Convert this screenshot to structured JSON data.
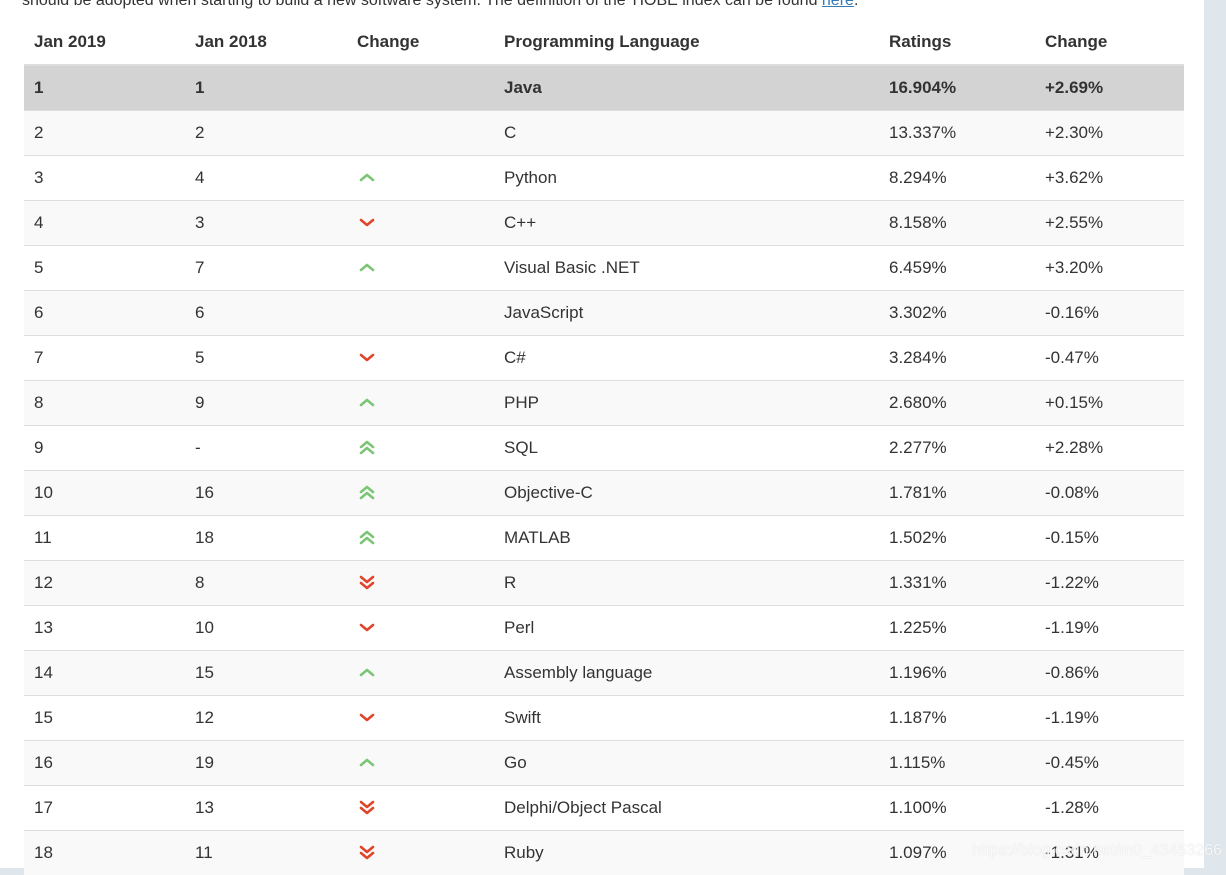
{
  "intro": {
    "text": "should be adopted when starting to build a new software system. The definition of the TIOBE index can be found ",
    "link": "here",
    "suffix": "."
  },
  "headers": [
    "Jan 2019",
    "Jan 2018",
    "Change",
    "Programming Language",
    "Ratings",
    "Change"
  ],
  "rows": [
    {
      "rank2019": "1",
      "rank2018": "1",
      "change": "none",
      "language": "Java",
      "rating": "16.904%",
      "delta": "+2.69%"
    },
    {
      "rank2019": "2",
      "rank2018": "2",
      "change": "none",
      "language": "C",
      "rating": "13.337%",
      "delta": "+2.30%"
    },
    {
      "rank2019": "3",
      "rank2018": "4",
      "change": "up",
      "language": "Python",
      "rating": "8.294%",
      "delta": "+3.62%"
    },
    {
      "rank2019": "4",
      "rank2018": "3",
      "change": "down",
      "language": "C++",
      "rating": "8.158%",
      "delta": "+2.55%"
    },
    {
      "rank2019": "5",
      "rank2018": "7",
      "change": "up",
      "language": "Visual Basic .NET",
      "rating": "6.459%",
      "delta": "+3.20%"
    },
    {
      "rank2019": "6",
      "rank2018": "6",
      "change": "none",
      "language": "JavaScript",
      "rating": "3.302%",
      "delta": "-0.16%"
    },
    {
      "rank2019": "7",
      "rank2018": "5",
      "change": "down",
      "language": "C#",
      "rating": "3.284%",
      "delta": "-0.47%"
    },
    {
      "rank2019": "8",
      "rank2018": "9",
      "change": "up",
      "language": "PHP",
      "rating": "2.680%",
      "delta": "+0.15%"
    },
    {
      "rank2019": "9",
      "rank2018": "-",
      "change": "up2",
      "language": "SQL",
      "rating": "2.277%",
      "delta": "+2.28%"
    },
    {
      "rank2019": "10",
      "rank2018": "16",
      "change": "up2",
      "language": "Objective-C",
      "rating": "1.781%",
      "delta": "-0.08%"
    },
    {
      "rank2019": "11",
      "rank2018": "18",
      "change": "up2",
      "language": "MATLAB",
      "rating": "1.502%",
      "delta": "-0.15%"
    },
    {
      "rank2019": "12",
      "rank2018": "8",
      "change": "down2",
      "language": "R",
      "rating": "1.331%",
      "delta": "-1.22%"
    },
    {
      "rank2019": "13",
      "rank2018": "10",
      "change": "down",
      "language": "Perl",
      "rating": "1.225%",
      "delta": "-1.19%"
    },
    {
      "rank2019": "14",
      "rank2018": "15",
      "change": "up",
      "language": "Assembly language",
      "rating": "1.196%",
      "delta": "-0.86%"
    },
    {
      "rank2019": "15",
      "rank2018": "12",
      "change": "down",
      "language": "Swift",
      "rating": "1.187%",
      "delta": "-1.19%"
    },
    {
      "rank2019": "16",
      "rank2018": "19",
      "change": "up",
      "language": "Go",
      "rating": "1.115%",
      "delta": "-0.45%"
    },
    {
      "rank2019": "17",
      "rank2018": "13",
      "change": "down2",
      "language": "Delphi/Object Pascal",
      "rating": "1.100%",
      "delta": "-1.28%"
    },
    {
      "rank2019": "18",
      "rank2018": "11",
      "change": "down2",
      "language": "Ruby",
      "rating": "1.097%",
      "delta": "-1.31%"
    }
  ],
  "colors": {
    "up": "#7cc576",
    "down": "#e0452b",
    "highlight": "#d3d3d3"
  },
  "icons": {
    "up": "chevron-up-icon",
    "down": "chevron-down-icon",
    "up2": "double-chevron-up-icon",
    "down2": "double-chevron-down-icon"
  },
  "watermark": "https://blog.csdn.net/m0_43453266"
}
